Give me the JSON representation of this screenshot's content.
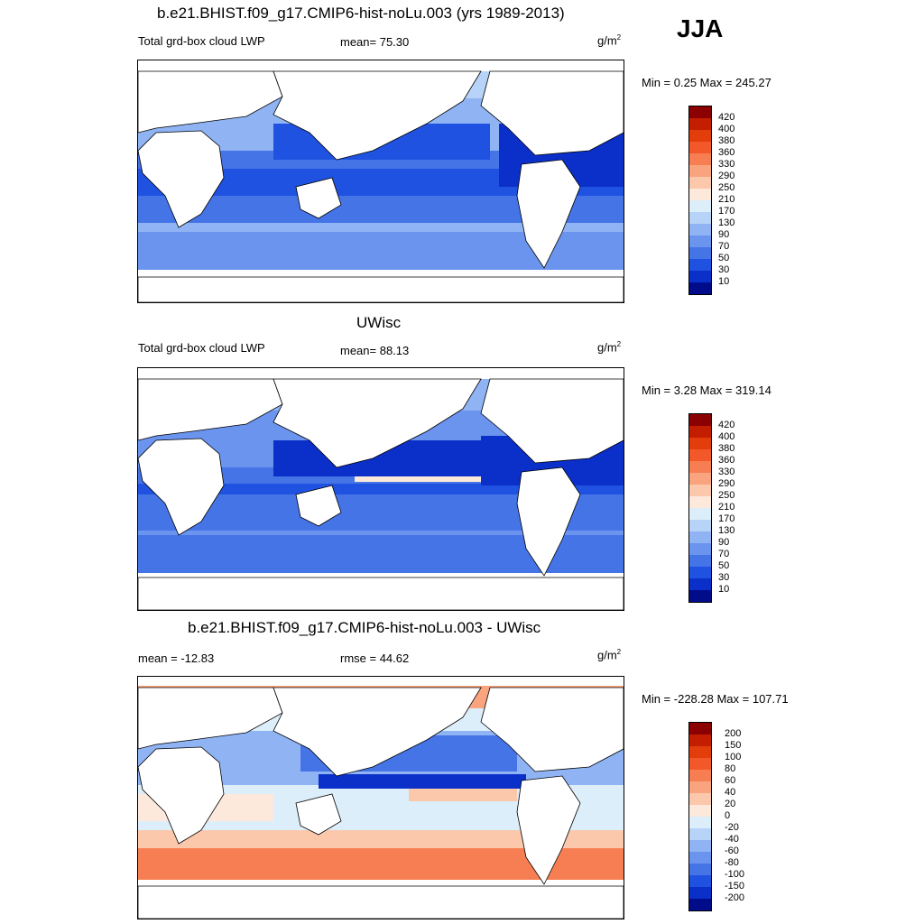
{
  "season": "JJA",
  "panel1": {
    "title": "b.e21.BHIST.f09_g17.CMIP6-hist-noLu.003 (yrs 1989-2013)",
    "variable": "Total grd-box cloud LWP",
    "stat": "mean=  75.30",
    "unit_base": "g/m",
    "unit_exp": "2",
    "minmax": "Min =   0.25 Max = 245.27"
  },
  "panel2": {
    "title": "UWisc",
    "variable": "Total grd-box cloud LWP",
    "stat": "mean=  88.13",
    "unit_base": "g/m",
    "unit_exp": "2",
    "minmax": "Min =   3.28 Max = 319.14"
  },
  "panel3": {
    "title": "b.e21.BHIST.f09_g17.CMIP6-hist-noLu.003 - UWisc",
    "stat_left": "mean = -12.83",
    "stat": "rmse =  44.62",
    "unit_base": "g/m",
    "unit_exp": "2",
    "minmax": "Min = -228.28 Max = 107.71"
  },
  "colorbar_abs": {
    "labels": [
      "420",
      "400",
      "380",
      "360",
      "330",
      "290",
      "250",
      "210",
      "170",
      "130",
      "90",
      "70",
      "50",
      "30",
      "10"
    ],
    "colors": [
      "#8b0000",
      "#c41e00",
      "#e33d0c",
      "#f2582a",
      "#f77e52",
      "#f9a47f",
      "#fbc8ab",
      "#fde9dc",
      "#dceefa",
      "#b7d3f8",
      "#8fb3f3",
      "#6a94ee",
      "#4574e7",
      "#1f52e0",
      "#0b2fc9",
      "#000c8a"
    ]
  },
  "colorbar_diff": {
    "labels": [
      "200",
      "150",
      "100",
      "80",
      "60",
      "40",
      "20",
      "0",
      "-20",
      "-40",
      "-60",
      "-80",
      "-100",
      "-150",
      "-200"
    ],
    "colors": [
      "#8b0000",
      "#c41e00",
      "#e33d0c",
      "#f2582a",
      "#f77e52",
      "#f9a47f",
      "#fbc8ab",
      "#fde9dc",
      "#dceefa",
      "#b7d3f8",
      "#8fb3f3",
      "#6a94ee",
      "#4574e7",
      "#1f52e0",
      "#0b2fc9",
      "#000c8a"
    ]
  }
}
